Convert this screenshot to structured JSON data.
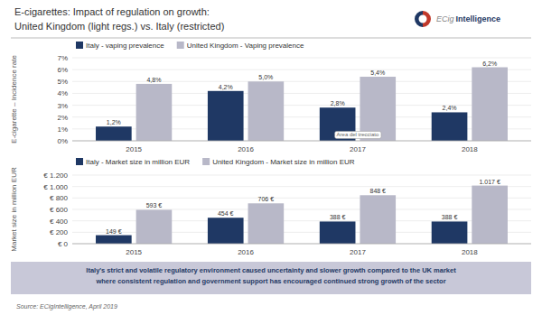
{
  "chart_data": [
    {
      "type": "bar",
      "title": "E-cigarettes: Impact of regulation on growth:",
      "subtitle": "United Kingdom (light regs.) vs. Italy (restricted)",
      "categories": [
        "2015",
        "2016",
        "2017",
        "2018"
      ],
      "series": [
        {
          "name": "Italy - vaping prevalence",
          "color": "#1f3864",
          "values": [
            1.2,
            4.2,
            2.8,
            2.4
          ],
          "value_labels": [
            "1,2%",
            "4,2%",
            "2,8%",
            "2,4%"
          ]
        },
        {
          "name": "United Kingdom - Vaping prevalence",
          "color": "#b8b8c8",
          "values": [
            4.8,
            5.0,
            5.4,
            6.2
          ],
          "value_labels": [
            "4,8%",
            "5,0%",
            "5,4%",
            "6,2%"
          ]
        }
      ],
      "ylim": [
        0,
        7
      ],
      "yticks": [
        {
          "value": 0,
          "label": "0%"
        },
        {
          "value": 1,
          "label": "1%"
        },
        {
          "value": 2,
          "label": "2%"
        },
        {
          "value": 3,
          "label": "3%"
        },
        {
          "value": 4,
          "label": "4%"
        },
        {
          "value": 5,
          "label": "5%"
        },
        {
          "value": 6,
          "label": "6%"
        },
        {
          "value": 7,
          "label": "7%"
        }
      ],
      "y_label": "E-cigarette – Incidence rate",
      "grid": true,
      "legend": "top-left",
      "data_labels": true,
      "annotations": [
        {
          "text": "Area del trecciato",
          "x": "2017",
          "y": 0.04
        }
      ]
    },
    {
      "type": "bar",
      "categories": [
        "2015",
        "2016",
        "2017",
        "2018"
      ],
      "series": [
        {
          "name": "Italy - Market size in million EUR",
          "color": "#1f3864",
          "values": [
            149,
            454,
            388,
            388
          ],
          "value_labels": [
            "149 €",
            "454 €",
            "388 €",
            "388 €"
          ]
        },
        {
          "name": "United Kingdom - Market size in million EUR",
          "color": "#b8b8c8",
          "values": [
            593,
            706,
            848,
            1017
          ],
          "value_labels": [
            "593 €",
            "706 €",
            "848 €",
            "1.017 €"
          ]
        }
      ],
      "ylim": [
        0,
        1200
      ],
      "yticks": [
        {
          "value": 0,
          "label": "€ 0"
        },
        {
          "value": 200,
          "label": "€ 200"
        },
        {
          "value": 400,
          "label": "€ 400"
        },
        {
          "value": 600,
          "label": "€ 600"
        },
        {
          "value": 800,
          "label": "€ 800"
        },
        {
          "value": 1000,
          "label": "€ 1.000"
        },
        {
          "value": 1200,
          "label": "€ 1.200"
        }
      ],
      "y_label": "Market size in million EUR",
      "grid": true,
      "legend": "top-left",
      "data_labels": true
    }
  ],
  "logo": [
    "ECig",
    "Intelligence"
  ],
  "footer": "Italy's strict and volatile regulatory environment caused uncertainty and slower growth compared to the UK market\nwhere consistent regulation and government support has encouraged continued strong growth of the sector",
  "source": "Source: ECigIntelligence, April 2019"
}
